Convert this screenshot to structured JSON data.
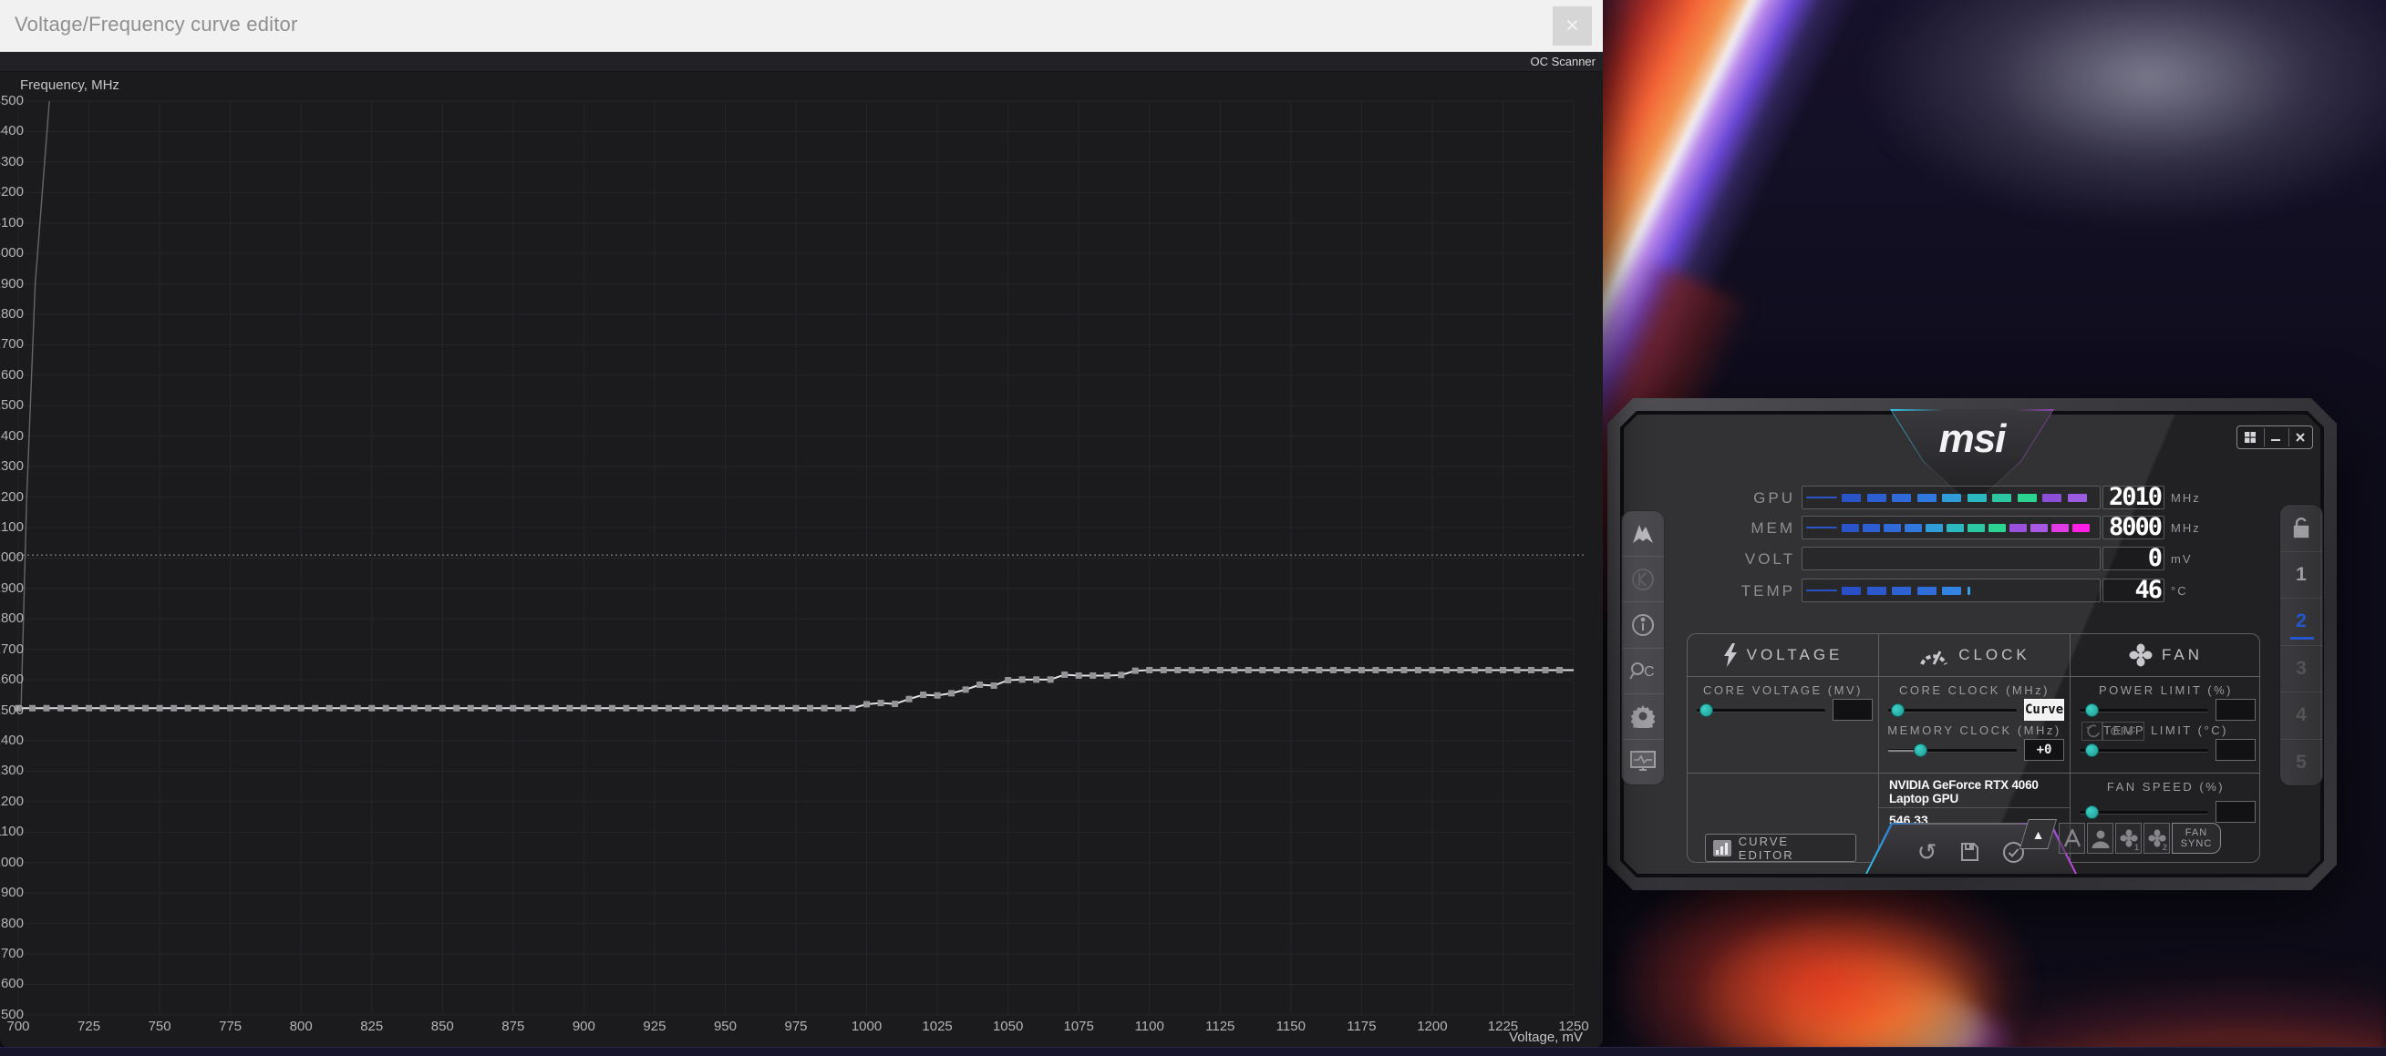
{
  "colors": {
    "accent_cyan": "#36c8f0",
    "accent_magenta": "#c84ae0",
    "profile_active_blue": "#2e6bff",
    "slider_knob_teal": "#2fb8b2",
    "curve_line": "#e0e0e0",
    "curve_marker": "#949498"
  },
  "curve_editor": {
    "title": "Voltage/Frequency curve editor",
    "close_label": "×",
    "toolbar": {
      "oc_scanner_label": "OC Scanner"
    },
    "chart_data": {
      "type": "line",
      "title": "",
      "xlabel": "Voltage, mV",
      "ylabel": "Frequency, MHz",
      "xlim": [
        700,
        1250
      ],
      "xtick_step": 25,
      "ylim": [
        500,
        3500
      ],
      "ytick_step": 100,
      "grid": true,
      "legend": "none",
      "current_clock_dashed_line_mhz": 2010,
      "marker_step_mv": 5,
      "series": [
        {
          "name": "vf-curve",
          "markers": true,
          "points": [
            [
              700,
              1507
            ],
            [
              995,
              1507
            ],
            [
              1000,
              1520
            ],
            [
              1005,
              1524
            ],
            [
              1010,
              1521
            ],
            [
              1015,
              1537
            ],
            [
              1020,
              1551
            ],
            [
              1025,
              1549
            ],
            [
              1030,
              1556
            ],
            [
              1035,
              1568
            ],
            [
              1040,
              1584
            ],
            [
              1045,
              1581
            ],
            [
              1050,
              1599
            ],
            [
              1055,
              1601
            ],
            [
              1060,
              1601
            ],
            [
              1065,
              1601
            ],
            [
              1070,
              1617
            ],
            [
              1075,
              1614
            ],
            [
              1080,
              1614
            ],
            [
              1085,
              1614
            ],
            [
              1090,
              1616
            ],
            [
              1095,
              1630
            ],
            [
              1100,
              1632
            ],
            [
              1250,
              1632
            ]
          ]
        },
        {
          "name": "left-edge-segment",
          "markers": false,
          "points": [
            [
              701,
              1507
            ],
            [
              703,
              2200
            ],
            [
              706,
              2900
            ],
            [
              711,
              3500
            ]
          ]
        }
      ]
    }
  },
  "afterburner": {
    "logo": "msi",
    "window_buttons": {
      "windows": "windows-icon",
      "minimize": "–",
      "close": "x"
    },
    "readouts": [
      {
        "label": "GPU",
        "value": "2010",
        "unit": "MHz",
        "segments": [
          "#2a55c8",
          "#2d5fd2",
          "#2f6ad8",
          "#3178de",
          "#2f9ed8",
          "#2cb8c0",
          "#2cc8a4",
          "#2cd492",
          "#8c50d8",
          "#9c5ce2"
        ]
      },
      {
        "label": "MEM",
        "value": "8000",
        "unit": "MHz",
        "segments": [
          "#2a55c8",
          "#2d5fd2",
          "#2f6ad8",
          "#3178de",
          "#2f9ed8",
          "#2cb8c0",
          "#2cc8a4",
          "#2cd492",
          "#9a52dc",
          "#a858e2",
          "#e23ae4",
          "#ff1ee6"
        ]
      },
      {
        "label": "VOLT",
        "value": "0",
        "unit": "mV",
        "segments": []
      },
      {
        "label": "TEMP",
        "value": "46",
        "unit": "°C",
        "segments": [
          "#2a50c8",
          "#2c58ce",
          "#2e62d4",
          "#306cda",
          "#3284e2"
        ],
        "tick": "#36a0ea"
      }
    ],
    "panels": [
      {
        "header": "VOLTAGE",
        "icon": "lightning-icon",
        "controls": [
          {
            "label": "CORE VOLTAGE  (MV)",
            "value": "",
            "knob_pos": 0.02
          }
        ]
      },
      {
        "header": "CLOCK",
        "icon": "gauge-icon",
        "controls": [
          {
            "label": "CORE CLOCK  (MHz)",
            "value": "Curve",
            "inverted": true,
            "knob_pos": 0.02
          },
          {
            "label": "MEMORY CLOCK  (MHz)",
            "value": "+0",
            "knob_pos": 0.2,
            "lead": true
          }
        ]
      },
      {
        "header": "FAN",
        "icon": "fan-icon",
        "controls": [
          {
            "label": "POWER LIMIT  (%)",
            "value": "",
            "knob_pos": 0.04
          },
          {
            "label": "TEMP LIMIT  (°C)",
            "value": "",
            "knob_pos": 0.04
          }
        ],
        "off_label": "OFF"
      }
    ],
    "gpu_name": "NVIDIA GeForce RTX 4060 Laptop GPU",
    "driver_version": "546.33",
    "fan_speed_label": "FAN SPEED  (%)",
    "fan_speed_value": "",
    "fan_speed_knob_pos": 0.04,
    "curve_editor_button_label": "CURVE EDITOR",
    "fan_sync_label_line1": "FAN",
    "fan_sync_label_line2": "SYNC",
    "up_arrow": "▲",
    "action_icons": [
      "reset-icon",
      "save-icon",
      "apply-icon"
    ],
    "profile_buttons": [
      "auto-profile",
      "user-profile",
      "fan-profile-1",
      "fan-profile-2"
    ],
    "sidebar_icons": [
      "msi-dragon-icon",
      "kombustor-icon",
      "info-icon",
      "oc-scanner-icon",
      "settings-icon",
      "hardware-monitor-icon"
    ],
    "profiles": {
      "lock": "unlock-icon",
      "items": [
        "1",
        "2",
        "3",
        "4",
        "5"
      ],
      "active": "2"
    }
  }
}
